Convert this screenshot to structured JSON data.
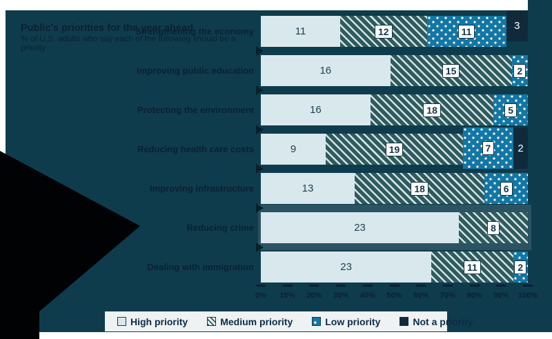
{
  "colors": {
    "background": "#0e3c4c",
    "high_priority": "#d9e8ec",
    "medium_base": "#2f5a5e",
    "medium_stripe": "#d4e4e4",
    "low_priority": "#1377a5",
    "not_a_priority": "#102a3c",
    "dark_text": "#0a2133",
    "black_glitch": "#000204",
    "legend_bg": "#eef2f2"
  },
  "header": {
    "title": "Public's priorities for the year ahead",
    "subtitle": "% of U.S. adults who say each of the following should be a priority"
  },
  "axis": {
    "ticks": [
      "0%",
      "10%",
      "20%",
      "30%",
      "40%",
      "50%",
      "60%",
      "70%",
      "80%",
      "90%",
      "100%"
    ]
  },
  "legend": {
    "items": [
      {
        "label": "High priority",
        "style": "light"
      },
      {
        "label": "Medium priority",
        "style": "hatch"
      },
      {
        "label": "Low priority",
        "style": "dot"
      },
      {
        "label": "Not a priority",
        "style": "navy"
      }
    ]
  },
  "rows": [
    {
      "label": "Strengthening the economy",
      "segments": [
        {
          "style": "light",
          "value": 11
        },
        {
          "style": "hatch",
          "value": 12
        },
        {
          "style": "dot",
          "value": 11
        },
        {
          "style": "navy",
          "value": 3,
          "bleed": "up"
        }
      ]
    },
    {
      "label": "Improving public education",
      "segments": [
        {
          "style": "light",
          "value": 16
        },
        {
          "style": "hatch",
          "value": 15
        },
        {
          "style": "dot",
          "value": 2
        }
      ]
    },
    {
      "label": "Protecting the environment",
      "segments": [
        {
          "style": "light",
          "value": 16
        },
        {
          "style": "hatch",
          "value": 18
        },
        {
          "style": "dot",
          "value": 5
        }
      ]
    },
    {
      "label": "Reducing health care costs",
      "segments": [
        {
          "style": "light",
          "value": 9
        },
        {
          "style": "hatch",
          "value": 19
        },
        {
          "style": "dot",
          "value": 7,
          "bleed": "both"
        },
        {
          "style": "navy",
          "value": 2,
          "bleed": "both"
        }
      ]
    },
    {
      "label": "Improving infrastructure",
      "segments": [
        {
          "style": "light",
          "value": 13
        },
        {
          "style": "hatch",
          "value": 18
        },
        {
          "style": "dot",
          "value": 6
        }
      ]
    },
    {
      "label": "Reducing crime",
      "segments": [
        {
          "style": "light",
          "value": 23
        },
        {
          "style": "hatch",
          "value": 8
        }
      ],
      "highlight": true
    },
    {
      "label": "Dealing with immigration",
      "segments": [
        {
          "style": "light",
          "value": 23
        },
        {
          "style": "hatch",
          "value": 11
        },
        {
          "style": "dot",
          "value": 2
        }
      ]
    }
  ],
  "chart_data": {
    "type": "bar",
    "orientation": "horizontal",
    "stacked": true,
    "normalized_to_full_width": true,
    "title": "Public's priorities for the year ahead",
    "subtitle": "% of U.S. adults who say each of the following should be a priority",
    "categories": [
      "Strengthening the economy",
      "Improving public education",
      "Protecting the environment",
      "Reducing health care costs",
      "Improving infrastructure",
      "Reducing crime",
      "Dealing with immigration"
    ],
    "series": [
      {
        "name": "High priority",
        "values": [
          11,
          16,
          16,
          9,
          13,
          23,
          23
        ]
      },
      {
        "name": "Medium priority",
        "values": [
          12,
          15,
          18,
          19,
          18,
          8,
          11
        ]
      },
      {
        "name": "Low priority",
        "values": [
          11,
          2,
          5,
          7,
          6,
          0,
          2
        ]
      },
      {
        "name": "Not a priority",
        "values": [
          3,
          0,
          0,
          2,
          0,
          0,
          0
        ]
      }
    ],
    "xlabel": "",
    "ylabel": "",
    "x_tick_labels": [
      "0%",
      "10%",
      "20%",
      "30%",
      "40%",
      "50%",
      "60%",
      "70%",
      "80%",
      "90%",
      "100%"
    ],
    "legend_position": "bottom"
  }
}
